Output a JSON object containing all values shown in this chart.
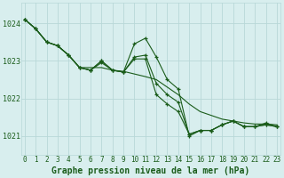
{
  "bg_color": "#d8eeee",
  "grid_color": "#b8d8d8",
  "line_color": "#1a5c1a",
  "title": "Graphe pression niveau de la mer (hPa)",
  "xlim": [
    -0.3,
    23.3
  ],
  "ylim": [
    1020.5,
    1024.55
  ],
  "yticks": [
    1021,
    1022,
    1023,
    1024
  ],
  "xticks": [
    0,
    1,
    2,
    3,
    4,
    5,
    6,
    7,
    8,
    9,
    10,
    11,
    12,
    13,
    14,
    15,
    16,
    17,
    18,
    19,
    20,
    21,
    22,
    23
  ],
  "series1_x": [
    0,
    1,
    2,
    3,
    4,
    5,
    6,
    7,
    8,
    9,
    10,
    11,
    12,
    13,
    14,
    15,
    16,
    17,
    18,
    19,
    20,
    21,
    22,
    23
  ],
  "series1_y": [
    1024.1,
    1023.85,
    1023.5,
    1023.4,
    1023.15,
    1022.82,
    1022.82,
    1022.82,
    1022.75,
    1022.72,
    1022.65,
    1022.58,
    1022.5,
    1022.3,
    1022.1,
    1021.85,
    1021.65,
    1021.55,
    1021.45,
    1021.4,
    1021.35,
    1021.32,
    1021.32,
    1021.3
  ],
  "series2_x": [
    0,
    1,
    2,
    3,
    4,
    5,
    6,
    7,
    8,
    9,
    10,
    11,
    12,
    13,
    14,
    15,
    16,
    17,
    18,
    19,
    20,
    21,
    22,
    23
  ],
  "series2_y": [
    1024.1,
    1023.85,
    1023.5,
    1023.4,
    1023.15,
    1022.82,
    1022.75,
    1022.95,
    1022.75,
    1022.7,
    1023.45,
    1023.6,
    1023.1,
    1022.5,
    1022.25,
    1021.0,
    1021.15,
    1021.15,
    1021.3,
    1021.4,
    1021.25,
    1021.25,
    1021.35,
    1021.25
  ],
  "series3_x": [
    0,
    1,
    2,
    3,
    4,
    5,
    6,
    7,
    8,
    9,
    10,
    11,
    12,
    13,
    14,
    15,
    16,
    17,
    18,
    19,
    20,
    21,
    22,
    23
  ],
  "series3_y": [
    1024.1,
    1023.85,
    1023.5,
    1023.4,
    1023.15,
    1022.82,
    1022.75,
    1023.0,
    1022.75,
    1022.7,
    1023.1,
    1023.15,
    1022.4,
    1022.1,
    1021.9,
    1021.05,
    1021.15,
    1021.15,
    1021.3,
    1021.4,
    1021.25,
    1021.25,
    1021.3,
    1021.25
  ],
  "series4_x": [
    0,
    1,
    2,
    3,
    4,
    5,
    6,
    7,
    8,
    9,
    10,
    11,
    12,
    13,
    14,
    15,
    16,
    17,
    18,
    19,
    20,
    21,
    22,
    23
  ],
  "series4_y": [
    1024.1,
    1023.85,
    1023.5,
    1023.4,
    1023.15,
    1022.82,
    1022.75,
    1023.0,
    1022.75,
    1022.7,
    1023.05,
    1023.05,
    1022.1,
    1021.85,
    1021.65,
    1021.05,
    1021.15,
    1021.15,
    1021.3,
    1021.4,
    1021.25,
    1021.25,
    1021.3,
    1021.25
  ]
}
